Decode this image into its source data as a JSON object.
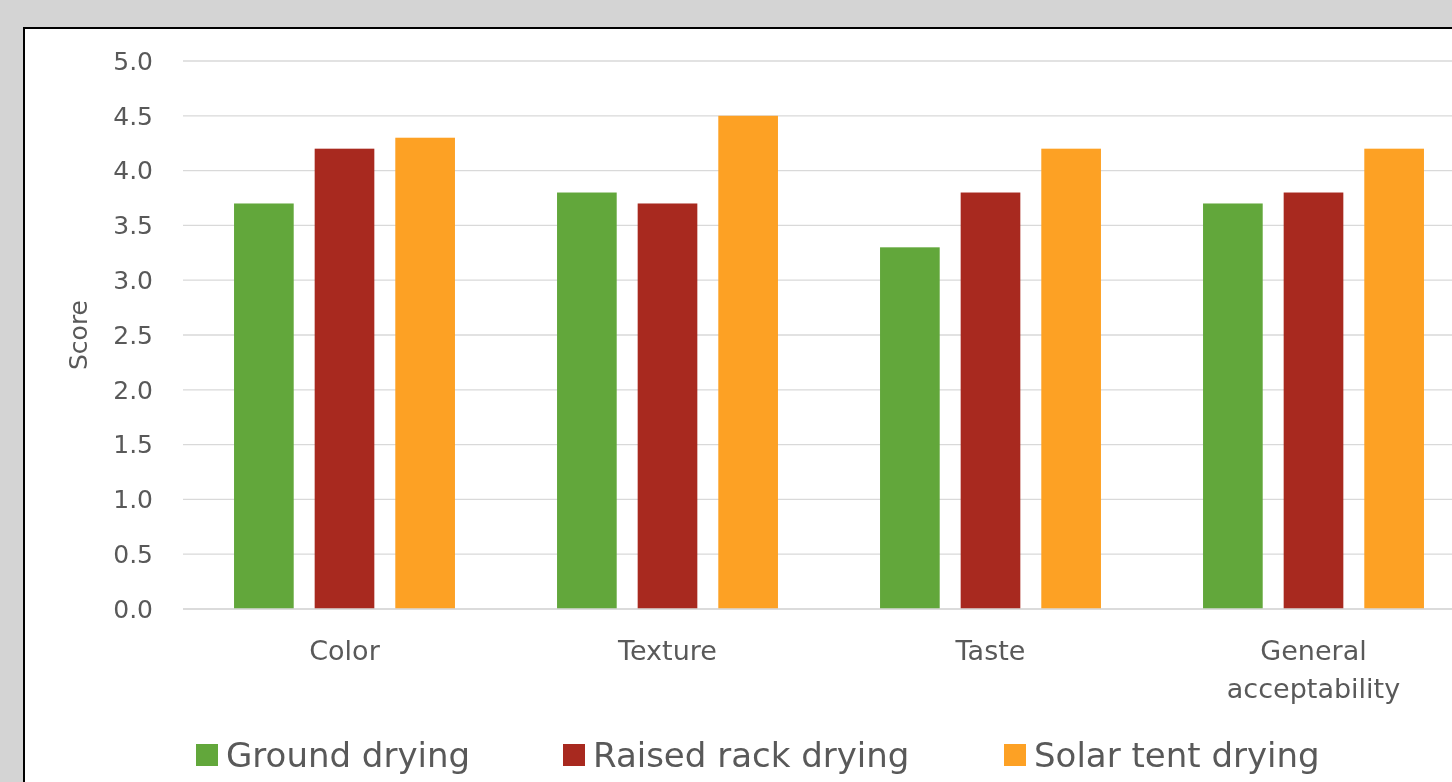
{
  "chart_data": {
    "type": "bar",
    "ylabel": "Score",
    "categories": [
      "Color",
      "Texture",
      "Taste",
      "General acceptability"
    ],
    "series": [
      {
        "name": "Ground drying",
        "color": "#62a73b",
        "values": [
          3.7,
          3.8,
          3.3,
          3.7
        ]
      },
      {
        "name": "Raised rack drying",
        "color": "#a8291f",
        "values": [
          4.2,
          3.7,
          3.8,
          3.8
        ]
      },
      {
        "name": "Solar tent drying",
        "color": "#fda124",
        "values": [
          4.3,
          4.5,
          4.2,
          4.2
        ]
      }
    ],
    "ylim": [
      0,
      5
    ],
    "yticks": [
      {
        "value": 0,
        "label": "0.0"
      },
      {
        "value": 0.5,
        "label": "0.5"
      },
      {
        "value": 1,
        "label": "1.0"
      },
      {
        "value": 1.5,
        "label": "1.5"
      },
      {
        "value": 2,
        "label": "2.0"
      },
      {
        "value": 2.5,
        "label": "2.5"
      },
      {
        "value": 3,
        "label": "3.0"
      },
      {
        "value": 3.5,
        "label": "3.5"
      },
      {
        "value": 4,
        "label": "4.0"
      },
      {
        "value": 4.5,
        "label": "4.5"
      },
      {
        "value": 5,
        "label": "5.0"
      }
    ],
    "grid": "y",
    "legend": "bottom"
  }
}
